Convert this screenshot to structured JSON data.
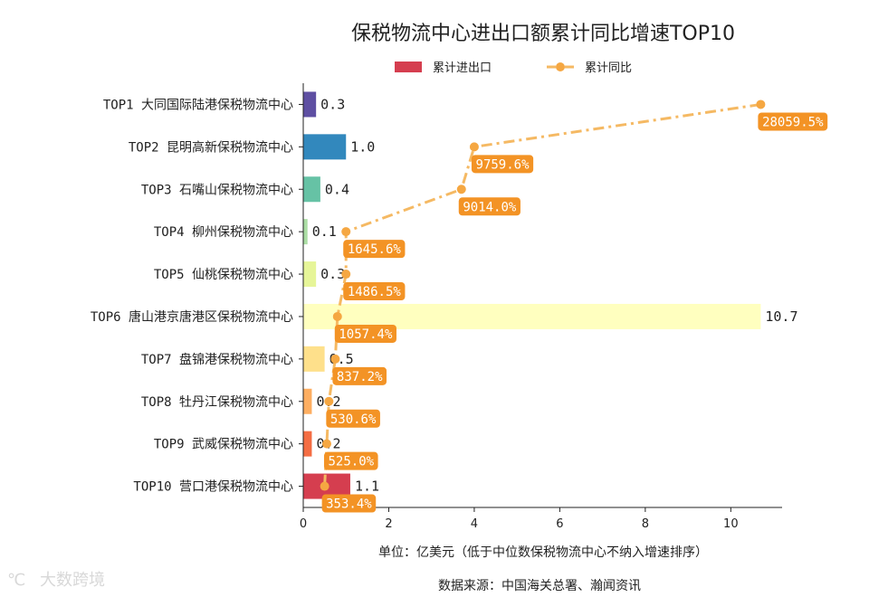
{
  "chart_data": {
    "type": "bar",
    "orientation": "horizontal",
    "title": "保税物流中心进出口额累计同比增速TOP10",
    "categories": [
      "TOP1 大同国际陆港保税物流中心",
      "TOP2 昆明高新保税物流中心",
      "TOP3 石嘴山保税物流中心",
      "TOP4 柳州保税物流中心",
      "TOP5 仙桃保税物流中心",
      "TOP6 唐山港京唐港区保税物流中心",
      "TOP7 盘锦港保税物流中心",
      "TOP8 牡丹江保税物流中心",
      "TOP9 武威保税物流中心",
      "TOP10 营口港保税物流中心"
    ],
    "series": [
      {
        "name": "累计进出口",
        "values": [
          0.3,
          1.0,
          0.4,
          0.1,
          0.3,
          10.7,
          0.5,
          0.2,
          0.2,
          1.1
        ],
        "value_labels": [
          "0.3",
          "1.0",
          "0.4",
          "0.1",
          "0.3",
          "10.7",
          "0.5",
          "0.2",
          "0.2",
          "1.1"
        ],
        "colors": [
          "#5e4fa2",
          "#3288bd",
          "#66c2a5",
          "#abdda4",
          "#e6f598",
          "#ffffbf",
          "#fee08b",
          "#fdae61",
          "#f46d43",
          "#d53e4f"
        ]
      },
      {
        "name": "累计同比",
        "marker_x": [
          10.7,
          4.0,
          3.7,
          1.0,
          1.0,
          0.8,
          0.75,
          0.6,
          0.55,
          0.5
        ],
        "values": [
          28059.5,
          9759.6,
          9014.0,
          1645.6,
          1486.5,
          1057.4,
          837.2,
          530.6,
          525.0,
          353.4
        ],
        "value_labels": [
          "28059.5%",
          "9759.6%",
          "9014.0%",
          "1645.6%",
          "1486.5%",
          "1057.4%",
          "837.2%",
          "530.6%",
          "525.0%",
          "353.4%"
        ],
        "color": "#f5a742"
      }
    ],
    "xlim": [
      0,
      11.2
    ],
    "xticks": [
      "0",
      "2",
      "4",
      "6",
      "8",
      "10"
    ],
    "xlabel": "单位：亿美元（低于中位数保税物流中心不纳入增速排序）",
    "legend_position": "top-center",
    "grid": false
  },
  "source_note": "数据来源：中国海关总署、瀚闻资讯",
  "watermark": "大数跨境",
  "colors": {
    "label_box": "#f39325",
    "line": "#f5b963"
  }
}
